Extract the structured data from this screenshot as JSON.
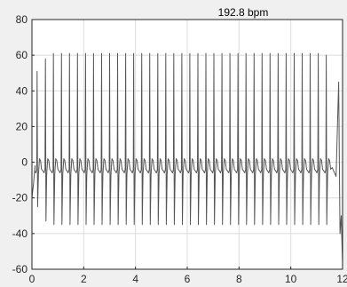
{
  "chart_data": {
    "type": "line",
    "title": "192.8 bpm",
    "xlabel": "",
    "ylabel": "",
    "xlim": [
      0,
      12
    ],
    "ylim": [
      -60,
      80
    ],
    "xticks": [
      0,
      2,
      4,
      6,
      8,
      10,
      12
    ],
    "xtick_labels": [
      "0",
      "2",
      "4",
      "6",
      "8",
      "10",
      "12"
    ],
    "yticks": [
      -60,
      -40,
      -20,
      0,
      20,
      40,
      60,
      80
    ],
    "ytick_labels": [
      "-60",
      "-40",
      "-20",
      "0",
      "20",
      "40",
      "60",
      "80"
    ],
    "grid": true,
    "line_color": "#555555",
    "series": [
      {
        "name": "",
        "beat_times": [
          0.2,
          0.52,
          0.83,
          1.14,
          1.45,
          1.76,
          2.07,
          2.38,
          2.69,
          3.0,
          3.31,
          3.62,
          3.93,
          4.24,
          4.55,
          4.86,
          5.17,
          5.48,
          5.79,
          6.1,
          6.41,
          6.72,
          7.03,
          7.34,
          7.65,
          7.96,
          8.27,
          8.58,
          8.89,
          9.2,
          9.51,
          9.82,
          10.13,
          10.44,
          10.75,
          11.06,
          11.37
        ],
        "peak_values": [
          51,
          58,
          61,
          61,
          61,
          61,
          61,
          61,
          61,
          61,
          61,
          61,
          61,
          61,
          61,
          61,
          61,
          61,
          61,
          61,
          61,
          61,
          61,
          61,
          61,
          61,
          61,
          61,
          61,
          61,
          61,
          61,
          61,
          61,
          61,
          61,
          60
        ],
        "trough_values": [
          -25,
          -33,
          -35,
          -35,
          -35,
          -35,
          -35,
          -35,
          -35,
          -35,
          -35,
          -35,
          -35,
          -35,
          -35,
          -35,
          -35,
          -35,
          -35,
          -35,
          -35,
          -35,
          -35,
          -35,
          -35,
          -35,
          -35,
          -35,
          -35,
          -35,
          -35,
          -35,
          -35,
          -35,
          -35,
          -35,
          -35
        ],
        "baseline": -5,
        "t_wave_peak": 2,
        "start_value": -20,
        "end_segment": [
          [
            11.6,
            -3
          ],
          [
            11.75,
            -8
          ],
          [
            11.85,
            45
          ],
          [
            11.9,
            -40
          ],
          [
            11.95,
            -30
          ],
          [
            12.0,
            -57
          ]
        ]
      }
    ]
  }
}
